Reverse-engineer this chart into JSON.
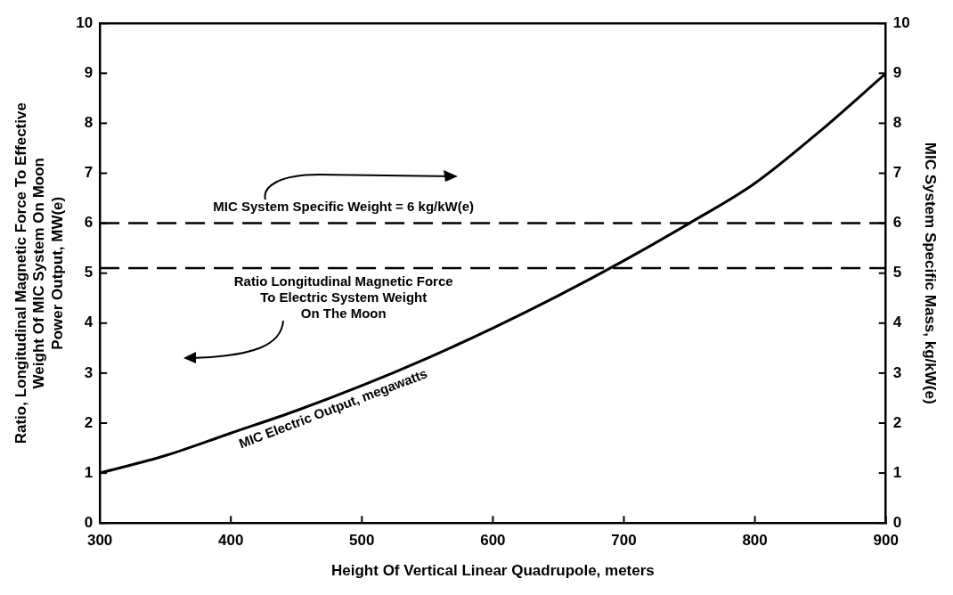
{
  "chart_data": {
    "type": "line",
    "xlabel": "Height Of Vertical Linear Quadrupole, meters",
    "ylabel": "Ratio, Longitudinal Magnetic Force To Effective\nWeight Of MIC System On Moon\nPower Output, MW(e)",
    "y2label": "MIC System Specific Mass, kg/kW(e)",
    "x": [
      300,
      350,
      400,
      450,
      500,
      550,
      600,
      650,
      700,
      750,
      800,
      850,
      900
    ],
    "series": [
      {
        "name": "MIC Electric Output, megawatts",
        "color": "#000000",
        "values": [
          1,
          1.35,
          1.8,
          2.25,
          2.75,
          3.3,
          3.9,
          4.55,
          5.25,
          6.0,
          6.8,
          7.85,
          9
        ]
      }
    ],
    "xlim": [
      300,
      900
    ],
    "xticks": [
      300,
      400,
      500,
      600,
      700,
      800,
      900
    ],
    "ylim": [
      0,
      10
    ],
    "yticks": [
      0,
      1,
      2,
      3,
      4,
      5,
      6,
      7,
      8,
      9,
      10
    ],
    "y2lim": [
      0,
      10
    ],
    "y2ticks": [
      0,
      1,
      2,
      3,
      4,
      5,
      6,
      7,
      8,
      9,
      10
    ],
    "ref_lines": [
      {
        "axis": "y2",
        "value": 6,
        "label": "MIC System Specific Weight = 6 kg/kW(e)",
        "color": "#000000",
        "line_style": "dashed"
      },
      {
        "axis": "y",
        "value": 5.1,
        "label": "Ratio Longitudinal Magnetic Force\nTo Electric System Weight\nOn The Moon",
        "color": "#000000",
        "line_style": "dashed"
      }
    ],
    "grid": false,
    "legend": false,
    "marker": "none",
    "line_style": "solid"
  }
}
